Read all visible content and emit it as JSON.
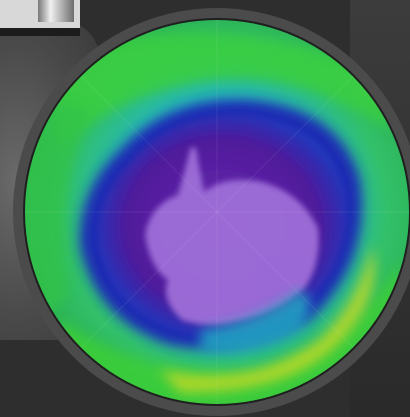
{
  "image": {
    "subject": "satellite-globe",
    "colors": {
      "background": "#2e2e2e",
      "rim": "#4b4b4b",
      "ocean_green": "#2fc24c",
      "cyan": "#23b7c5",
      "deep_blue": "#1b2bb3",
      "purple": "#5a1b9f",
      "land_lavender": "#9e6ed8",
      "yellow": "#c6d925"
    }
  }
}
